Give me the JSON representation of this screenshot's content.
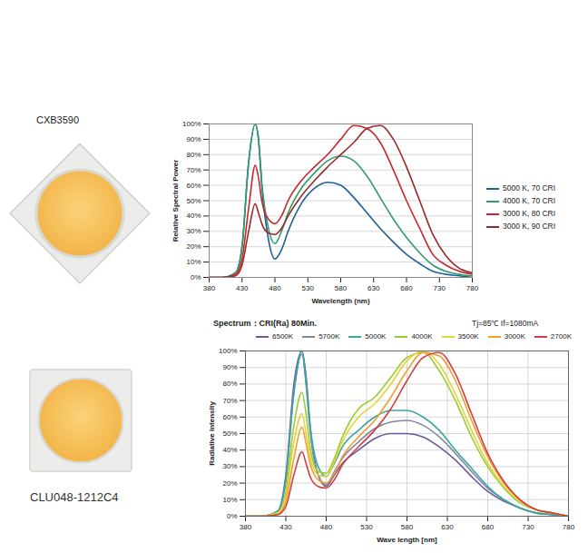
{
  "products": [
    "CXB3590",
    "CLU048-1212C4"
  ],
  "chart_data": [
    {
      "type": "line",
      "x_label": "Wavelength (nm)",
      "y_label": "Relative Spectral Power",
      "x": [
        380,
        400,
        420,
        430,
        440,
        450,
        455,
        460,
        470,
        480,
        490,
        500,
        520,
        540,
        560,
        580,
        600,
        620,
        640,
        660,
        680,
        700,
        720,
        740,
        760,
        780
      ],
      "series": [
        {
          "name": "5000 K, 70 CRI",
          "color": "#1f5f99",
          "values": [
            0,
            0,
            3,
            20,
            75,
            100,
            90,
            60,
            25,
            12,
            18,
            30,
            48,
            58,
            62,
            60,
            52,
            42,
            32,
            23,
            15,
            9,
            4,
            2,
            1,
            0
          ]
        },
        {
          "name": "4000 K, 70 CRI",
          "color": "#2e9d6b",
          "values": [
            0,
            0,
            3,
            20,
            75,
            100,
            90,
            62,
            32,
            22,
            30,
            42,
            58,
            68,
            76,
            79,
            76,
            66,
            52,
            38,
            26,
            16,
            8,
            4,
            2,
            1
          ]
        },
        {
          "name": "3000 K, 80 CRI",
          "color": "#c8262c",
          "values": [
            0,
            0,
            2,
            12,
            45,
            73,
            65,
            50,
            38,
            35,
            40,
            50,
            63,
            72,
            80,
            90,
            99,
            97,
            88,
            70,
            50,
            32,
            15,
            8,
            4,
            2
          ]
        },
        {
          "name": "3000 K, 90 CRI",
          "color": "#9a2a2a",
          "values": [
            0,
            0,
            1,
            8,
            30,
            48,
            42,
            35,
            29,
            28,
            32,
            40,
            53,
            63,
            72,
            80,
            88,
            97,
            99,
            90,
            72,
            50,
            28,
            14,
            6,
            3
          ]
        }
      ],
      "xlim": [
        380,
        780
      ],
      "xticks": [
        380,
        430,
        480,
        530,
        580,
        630,
        680,
        730,
        780
      ],
      "ylim": [
        0,
        100
      ],
      "yticks": [
        {
          "value": 0,
          "label": "0%"
        },
        {
          "value": 10,
          "label": "10%"
        },
        {
          "value": 20,
          "label": "20%"
        },
        {
          "value": 30,
          "label": "30%"
        },
        {
          "value": 40,
          "label": "40%"
        },
        {
          "value": 50,
          "label": "50%"
        },
        {
          "value": 60,
          "label": "60%"
        },
        {
          "value": 70,
          "label": "70%"
        },
        {
          "value": 80,
          "label": "80%"
        },
        {
          "value": 90,
          "label": "90%"
        },
        {
          "value": 100,
          "label": "100%"
        }
      ],
      "grid": "y",
      "legend": "right"
    },
    {
      "type": "line",
      "title": "Spectrum：CRI(Ra) 80Min.",
      "annotations": [
        "Tj=85℃",
        "If=1080mA"
      ],
      "x_label": "Wave length [nm]",
      "y_label": "Radiative Intensity",
      "x": [
        380,
        400,
        420,
        430,
        440,
        450,
        455,
        460,
        470,
        480,
        490,
        500,
        520,
        540,
        560,
        580,
        600,
        620,
        640,
        660,
        680,
        700,
        720,
        740,
        760,
        780
      ],
      "series": [
        {
          "name": "6500K",
          "color": "#6a5a9a",
          "values": [
            0,
            0,
            3,
            25,
            80,
            100,
            85,
            55,
            25,
            18,
            25,
            32,
            40,
            47,
            50,
            50,
            48,
            42,
            34,
            24,
            15,
            9,
            5,
            2,
            1,
            0
          ]
        },
        {
          "name": "5700K",
          "color": "#8088a8",
          "values": [
            0,
            0,
            3,
            22,
            75,
            98,
            80,
            52,
            25,
            19,
            27,
            35,
            45,
            53,
            57,
            58,
            55,
            48,
            38,
            27,
            17,
            10,
            5,
            2,
            1,
            0
          ]
        },
        {
          "name": "5000K",
          "color": "#3aa6a0",
          "values": [
            0,
            0,
            3,
            22,
            75,
            100,
            82,
            55,
            30,
            24,
            32,
            42,
            52,
            60,
            64,
            64,
            60,
            52,
            40,
            29,
            18,
            10,
            5,
            2,
            1,
            0
          ]
        },
        {
          "name": "4000K",
          "color": "#9acd32",
          "values": [
            0,
            0,
            2,
            15,
            55,
            75,
            62,
            42,
            27,
            26,
            35,
            48,
            65,
            72,
            84,
            96,
            99,
            88,
            70,
            48,
            30,
            17,
            8,
            4,
            2,
            0
          ]
        },
        {
          "name": "3500K",
          "color": "#e6d23a",
          "values": [
            0,
            0,
            2,
            12,
            45,
            62,
            50,
            36,
            25,
            24,
            33,
            45,
            60,
            68,
            80,
            94,
            100,
            92,
            74,
            52,
            32,
            18,
            9,
            4,
            2,
            0
          ]
        },
        {
          "name": "3000K",
          "color": "#f0a030",
          "values": [
            0,
            0,
            1,
            9,
            35,
            54,
            44,
            32,
            22,
            20,
            26,
            36,
            48,
            58,
            72,
            88,
            99,
            97,
            82,
            58,
            36,
            20,
            10,
            4,
            2,
            0
          ]
        },
        {
          "name": "2700K",
          "color": "#d04040",
          "values": [
            0,
            0,
            1,
            6,
            25,
            39,
            32,
            24,
            18,
            17,
            22,
            31,
            42,
            52,
            65,
            82,
            96,
            99,
            86,
            62,
            38,
            21,
            10,
            4,
            2,
            0
          ]
        }
      ],
      "xlim": [
        380,
        780
      ],
      "xticks": [
        380,
        430,
        480,
        530,
        580,
        630,
        680,
        730,
        780
      ],
      "ylim": [
        0,
        100
      ],
      "yticks": [
        {
          "value": 0,
          "label": "0%"
        },
        {
          "value": 10,
          "label": "10%"
        },
        {
          "value": 20,
          "label": "20%"
        },
        {
          "value": 30,
          "label": "30%"
        },
        {
          "value": 40,
          "label": "40%"
        },
        {
          "value": 50,
          "label": "50%"
        },
        {
          "value": 60,
          "label": "60%"
        },
        {
          "value": 70,
          "label": "70%"
        },
        {
          "value": 80,
          "label": "80%"
        },
        {
          "value": 90,
          "label": "90%"
        },
        {
          "value": 100,
          "label": "100%"
        }
      ],
      "grid": true,
      "legend": "top"
    }
  ]
}
